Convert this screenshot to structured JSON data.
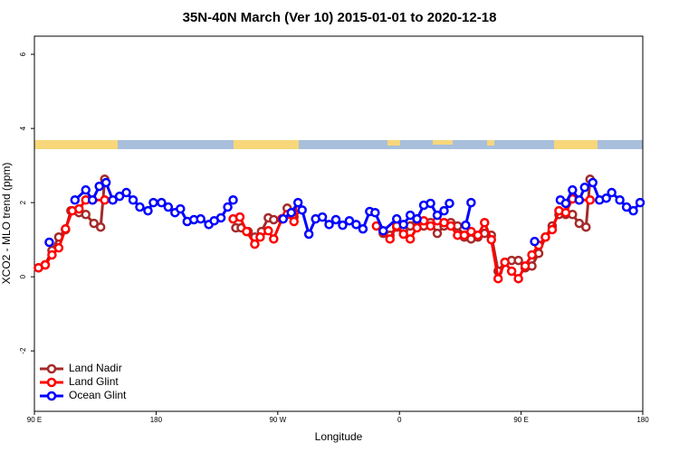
{
  "chart_data": {
    "type": "line",
    "title": "35N-40N March (Ver 10)   2015-01-01 to 2020-12-18",
    "x_label": "Longitude",
    "y_label": "XCO2 - MLO trend (ppm)",
    "xlim": [
      90,
      540
    ],
    "xticks": [
      {
        "value": 90,
        "label": "90 E"
      },
      180,
      {
        "value": 270,
        "label": "90 W"
      },
      {
        "value": 360,
        "label": "0"
      },
      {
        "value": 450,
        "label": "90 E"
      },
      {
        "value": 540,
        "label": "180"
      }
    ],
    "ylim": [
      -3.63,
      6.49
    ],
    "yticks": [
      -2,
      0,
      2,
      4,
      6
    ],
    "grid": false,
    "legend": "bottom-left",
    "series": [
      {
        "name": "Land Nadir",
        "color": "#a52a2a",
        "x": [
          93,
          98,
          103,
          108,
          113,
          117,
          123,
          128,
          134,
          139,
          142,
          null,
          239,
          243,
          248,
          253,
          258,
          263,
          267,
          273,
          277,
          282,
          null,
          348,
          353,
          358,
          363,
          368,
          373,
          378,
          383,
          388,
          393,
          398,
          403,
          408,
          413,
          418,
          423,
          428,
          433,
          438,
          443,
          448,
          453,
          458,
          463,
          468,
          473,
          478,
          483,
          488,
          493,
          498,
          501
        ],
        "values": [
          0.24,
          0.32,
          0.71,
          1.07,
          1.27,
          1.78,
          1.73,
          1.68,
          1.44,
          1.34,
          2.63,
          null,
          1.32,
          1.32,
          1.22,
          1.07,
          1.22,
          1.59,
          1.54,
          1.56,
          1.85,
          1.61,
          null,
          1.17,
          1.12,
          1.34,
          1.24,
          1.37,
          1.51,
          1.37,
          1.46,
          1.17,
          1.37,
          1.46,
          1.37,
          1.07,
          1.02,
          1.07,
          1.17,
          1.12,
          0.15,
          0.39,
          0.44,
          0.44,
          0.24,
          0.29,
          0.63,
          1.07,
          1.37,
          1.68,
          1.68,
          1.68,
          1.44,
          1.34,
          2.63
        ]
      },
      {
        "name": "Land Glint",
        "color": "#ff0000",
        "x": [
          93,
          98,
          103,
          108,
          113,
          118,
          123,
          128,
          133,
          142,
          null,
          237,
          242,
          247,
          253,
          257,
          263,
          267,
          273,
          277,
          282,
          286,
          null,
          343,
          348,
          353,
          358,
          363,
          368,
          373,
          378,
          383,
          388,
          393,
          398,
          403,
          408,
          413,
          418,
          423,
          428,
          433,
          438,
          443,
          448,
          453,
          458,
          463,
          468,
          473,
          478,
          483,
          488,
          493,
          501
        ],
        "values": [
          0.24,
          0.32,
          0.59,
          0.78,
          1.29,
          1.78,
          1.83,
          2.07,
          2.07,
          2.07,
          null,
          1.56,
          1.61,
          1.22,
          0.88,
          1.07,
          1.24,
          1.02,
          1.56,
          1.68,
          1.49,
          1.83,
          null,
          1.37,
          1.22,
          1.02,
          1.37,
          1.15,
          1.02,
          1.32,
          1.51,
          1.37,
          1.51,
          1.46,
          1.37,
          1.12,
          1.12,
          1.22,
          1.12,
          1.46,
          1.0,
          -0.05,
          0.39,
          0.15,
          -0.05,
          0.29,
          0.59,
          0.85,
          1.07,
          1.27,
          1.78,
          1.73,
          2.1,
          2.07,
          2.07
        ]
      },
      {
        "name": "Ocean Glint",
        "color": "#0000ff",
        "x": [
          101,
          null,
          120,
          128,
          133,
          138,
          143,
          148,
          153,
          158,
          163,
          168,
          174,
          178,
          184,
          189,
          194,
          198,
          203,
          208,
          213,
          219,
          223,
          228,
          233,
          237,
          null,
          274,
          280,
          285,
          288,
          293,
          298,
          303,
          308,
          313,
          318,
          323,
          328,
          333,
          338,
          342,
          348,
          358,
          363,
          368,
          373,
          378,
          383,
          388,
          393,
          397,
          null,
          409,
          413,
          null,
          460,
          null,
          479,
          483,
          488,
          493,
          497,
          503,
          508,
          513,
          517,
          523,
          528,
          533,
          538
        ],
        "values": [
          0.93,
          null,
          2.07,
          2.34,
          2.07,
          2.44,
          2.54,
          2.07,
          2.17,
          2.27,
          2.07,
          1.88,
          1.78,
          2.0,
          2.0,
          1.88,
          1.73,
          1.83,
          1.49,
          1.54,
          1.56,
          1.41,
          1.51,
          1.59,
          1.88,
          2.07,
          null,
          1.56,
          1.73,
          2.0,
          1.8,
          1.15,
          1.56,
          1.61,
          1.41,
          1.54,
          1.39,
          1.51,
          1.41,
          1.29,
          1.76,
          1.73,
          1.24,
          1.56,
          1.41,
          1.66,
          1.56,
          1.93,
          1.98,
          1.66,
          1.78,
          1.98,
          null,
          1.39,
          2.0,
          null,
          0.95,
          null,
          2.07,
          1.98,
          2.34,
          2.07,
          2.41,
          2.54,
          2.07,
          2.12,
          2.27,
          2.07,
          1.88,
          1.78,
          2.0
        ]
      }
    ]
  }
}
